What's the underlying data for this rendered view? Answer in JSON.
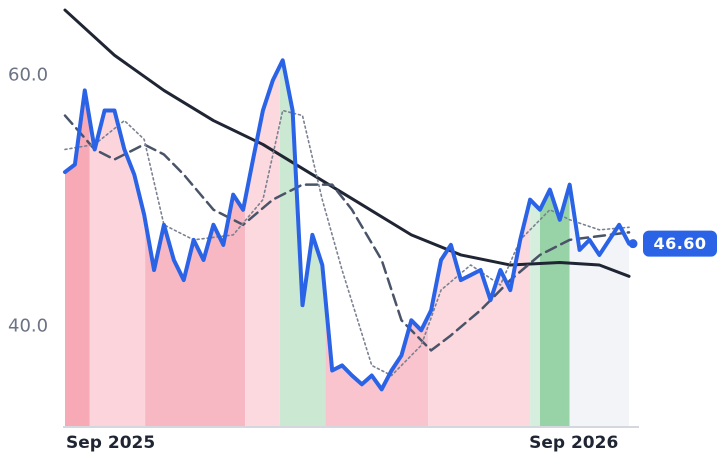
{
  "chart_data": {
    "type": "line",
    "x": [
      0,
      1,
      2,
      3,
      4,
      5,
      6,
      7,
      8,
      9,
      10,
      11,
      12,
      13,
      14,
      15,
      16,
      17,
      18,
      19,
      20,
      21,
      22,
      23,
      24,
      25,
      26,
      27,
      28,
      29,
      30,
      31,
      32,
      33,
      34,
      35,
      36,
      37,
      38,
      39,
      40,
      41,
      42,
      43,
      44,
      45,
      46,
      47,
      48,
      49,
      50,
      51,
      52,
      53,
      54,
      55,
      56,
      57
    ],
    "xlim": [
      0,
      57.4
    ],
    "xticks": [
      {
        "value": 0,
        "label": "Sep 2025"
      },
      {
        "value": 46.8,
        "label": "Sep 2026"
      }
    ],
    "ylim": [
      32,
      66
    ],
    "yticks": [
      {
        "value": 60,
        "label": "60.0"
      },
      {
        "value": 40,
        "label": "40.0"
      }
    ],
    "series": [
      {
        "color": "#2b63e6",
        "style": "solid",
        "width": 4,
        "values": [
          52.3,
          52.9,
          58.8,
          54.1,
          57.2,
          57.2,
          54.1,
          52.1,
          48.9,
          44.5,
          48.1,
          45.3,
          43.7,
          46.9,
          45.3,
          48.1,
          46.5,
          50.5,
          49.3,
          53.3,
          57.2,
          59.6,
          61.2,
          57.2,
          41.7,
          47.3,
          44.9,
          36.5,
          36.9,
          36.1,
          35.4,
          36.1,
          35.0,
          36.5,
          37.7,
          40.5,
          39.7,
          41.3,
          45.3,
          46.5,
          43.7,
          44.1,
          44.5,
          42.1,
          44.5,
          42.9,
          46.9,
          50.1,
          49.3,
          50.9,
          48.5,
          51.3,
          46.1,
          46.9,
          45.7,
          46.9,
          48.1,
          46.6
        ]
      },
      {
        "color": "#1f2533",
        "style": "solid",
        "width": 3,
        "x": [
          0,
          5,
          10,
          15,
          20,
          25,
          30,
          35,
          40,
          45,
          50,
          54,
          57
        ],
        "values": [
          65.2,
          61.6,
          58.8,
          56.4,
          54.5,
          52.1,
          49.7,
          47.3,
          45.7,
          44.9,
          45.1,
          44.9,
          44.0
        ]
      },
      {
        "color": "#4a5468",
        "style": "dashed",
        "width": 2.5,
        "x": [
          0,
          3,
          5,
          8,
          10,
          12,
          15,
          18,
          21,
          24,
          27,
          29,
          32,
          34,
          37,
          39,
          42,
          45,
          48,
          51,
          55,
          57
        ],
        "values": [
          56.8,
          54.1,
          53.3,
          54.5,
          53.7,
          52.1,
          49.3,
          48.1,
          50.1,
          51.3,
          51.3,
          49.3,
          45.3,
          40.5,
          38.1,
          39.3,
          41.3,
          43.7,
          45.7,
          46.9,
          47.3,
          47.5
        ]
      },
      {
        "color": "#7a8191",
        "style": "dotted",
        "width": 1.6,
        "x": [
          0,
          3,
          6,
          8,
          10,
          13,
          17,
          20,
          22,
          24,
          26,
          28,
          31,
          33,
          36,
          38,
          41,
          44,
          46,
          49,
          51,
          54,
          57
        ],
        "values": [
          54.1,
          54.5,
          56.4,
          54.9,
          48.1,
          46.9,
          47.3,
          50.1,
          57.2,
          56.8,
          50.1,
          44.5,
          36.9,
          36.1,
          38.5,
          42.9,
          44.9,
          43.3,
          46.9,
          49.3,
          48.5,
          47.7,
          47.9
        ]
      }
    ],
    "regions": [
      {
        "start": 0,
        "end": 2.5,
        "color": "#f7a9b6"
      },
      {
        "start": 2.5,
        "end": 8.1,
        "color": "#fcd5dc"
      },
      {
        "start": 8.1,
        "end": 18.2,
        "color": "#f8b8c3"
      },
      {
        "start": 18.2,
        "end": 21.7,
        "color": "#fcd9df"
      },
      {
        "start": 21.7,
        "end": 26.3,
        "color": "#cbe8d3"
      },
      {
        "start": 26.3,
        "end": 36.7,
        "color": "#f9c4cd"
      },
      {
        "start": 36.7,
        "end": 47,
        "color": "#fcd9df"
      },
      {
        "start": 47,
        "end": 48,
        "color": "#d6eedd"
      },
      {
        "start": 48,
        "end": 51,
        "color": "#98d3a8"
      },
      {
        "start": 51,
        "end": 57.4,
        "color": "#f3f4f8"
      }
    ],
    "last_value": {
      "value": 46.6,
      "label": "46.60"
    }
  }
}
